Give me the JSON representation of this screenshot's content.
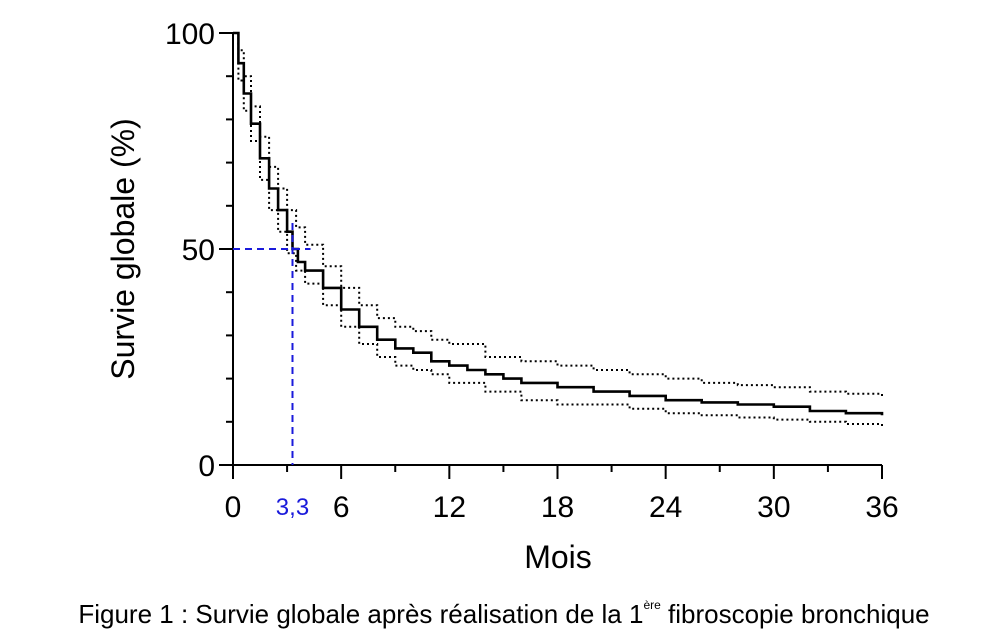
{
  "chart_data": {
    "type": "line",
    "title": "",
    "xlabel": "Mois",
    "ylabel": "Survie globale (%)",
    "xlim": [
      0,
      36
    ],
    "ylim": [
      0,
      100
    ],
    "x_ticks": [
      0,
      6,
      12,
      18,
      24,
      30,
      36
    ],
    "y_ticks": [
      0,
      50,
      100
    ],
    "grid": false,
    "median": {
      "x": 3.3,
      "y": 50,
      "label": "3,3",
      "color": "#1a1adb"
    },
    "series": [
      {
        "style": "solid",
        "color": "#000000",
        "x": [
          0,
          0.3,
          0.6,
          1.0,
          1.5,
          2.0,
          2.5,
          3.0,
          3.3,
          3.6,
          4.0,
          5.0,
          6.0,
          7.0,
          8.0,
          9.0,
          10.0,
          11.0,
          12.0,
          13.0,
          14.0,
          15.0,
          16.0,
          18.0,
          20.0,
          22.0,
          24.0,
          26.0,
          28.0,
          30.0,
          32.0,
          34.0,
          36.0
        ],
        "y": [
          100,
          93,
          86,
          79,
          71,
          64,
          59,
          54,
          50,
          47,
          45,
          41,
          36,
          32,
          29,
          27,
          26,
          24,
          23,
          22,
          21,
          20,
          19,
          18,
          17,
          16,
          15,
          14.5,
          14,
          13.5,
          12.5,
          12,
          11.5
        ]
      },
      {
        "style": "dotted",
        "color": "#000000",
        "x": [
          0,
          0.3,
          0.6,
          1.0,
          1.5,
          2.0,
          2.5,
          3.0,
          3.5,
          4.0,
          5.0,
          6.0,
          7.0,
          8.0,
          9.0,
          10.0,
          11.0,
          12.0,
          14.0,
          16.0,
          18.0,
          20.0,
          22.0,
          24.0,
          26.0,
          28.0,
          30.0,
          32.0,
          34.0,
          36.0
        ],
        "y": [
          100,
          96,
          90,
          83,
          76,
          69,
          64,
          59,
          55,
          51,
          46,
          41,
          37,
          34,
          32,
          31,
          29,
          28,
          25,
          24,
          23,
          22,
          21,
          20,
          19,
          18.5,
          18,
          17,
          16.5,
          15.5
        ]
      },
      {
        "style": "dotted",
        "color": "#000000",
        "x": [
          0,
          0.3,
          0.6,
          1.0,
          1.5,
          2.0,
          2.5,
          3.0,
          3.5,
          4.0,
          5.0,
          6.0,
          7.0,
          8.0,
          9.0,
          10.0,
          11.0,
          12.0,
          14.0,
          16.0,
          18.0,
          20.0,
          22.0,
          24.0,
          26.0,
          28.0,
          30.0,
          32.0,
          34.0,
          36.0
        ],
        "y": [
          100,
          89,
          82,
          75,
          66,
          59,
          54,
          49,
          45,
          42,
          37,
          32,
          28,
          25,
          23,
          22,
          21,
          19,
          17,
          15,
          14,
          14,
          13,
          12,
          11.5,
          11,
          10.5,
          10,
          9.5,
          8.5
        ]
      }
    ]
  },
  "caption": {
    "prefix": "Figure 1 : Survie globale après réalisation de la 1",
    "superscript": "ère",
    "suffix": " fibroscopie bronchique"
  }
}
